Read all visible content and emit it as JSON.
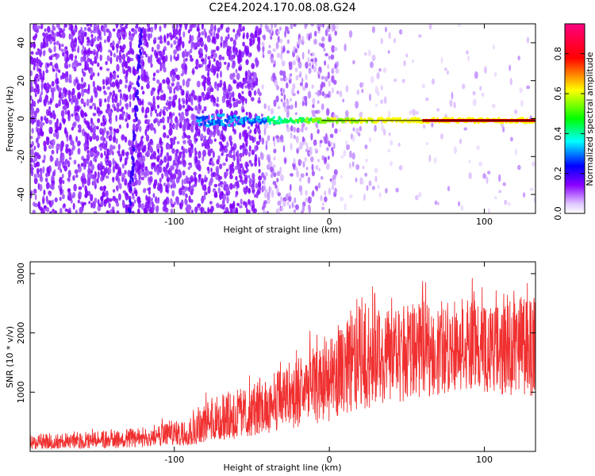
{
  "title": "C2E4.2024.170.08.08.G24",
  "chart_data": [
    {
      "type": "heatmap",
      "xlabel": "Height of straight line (km)",
      "ylabel": "Frequency (Hz)",
      "xlim": [
        -193,
        133
      ],
      "ylim": [
        -50,
        50
      ],
      "xticks": [
        -100,
        0,
        100
      ],
      "yticks": [
        -40,
        -20,
        0,
        20,
        40
      ],
      "colorbar": {
        "label": "Normalized spectral amplitude",
        "range": [
          0,
          0.95
        ],
        "ticks": [
          0.0,
          0.2,
          0.4,
          0.6,
          0.8
        ],
        "colormap": [
          "#ffffff",
          "#d9b3ff",
          "#7f00ff",
          "#0000ff",
          "#00ffff",
          "#00ff00",
          "#ffff00",
          "#ff0000",
          "#ff0080"
        ]
      },
      "signal_band": {
        "description_x": [
          -85,
          133
        ],
        "center_frequency": -1,
        "start_x": -85
      }
    },
    {
      "type": "line",
      "xlabel": "Height of straight line (km)",
      "ylabel": "SNR (10 * v/v)",
      "xlim": [
        -193,
        133
      ],
      "ylim": [
        0,
        3200
      ],
      "xticks": [
        -100,
        0,
        100
      ],
      "yticks": [
        1000,
        2000,
        3000
      ],
      "series": [
        {
          "color": "#f03030",
          "envelope_x": [
            -193,
            -160,
            -130,
            -110,
            -90,
            -80,
            -70,
            -60,
            -50,
            -40,
            -30,
            -20,
            -10,
            0,
            10,
            20,
            30,
            40,
            50,
            60,
            70,
            80,
            90,
            100,
            110,
            120,
            133
          ],
          "envelope_low": [
            30,
            40,
            60,
            80,
            100,
            120,
            150,
            200,
            250,
            300,
            350,
            400,
            450,
            500,
            600,
            700,
            750,
            800,
            850,
            900,
            950,
            1000,
            1050,
            1000,
            950,
            900,
            900
          ],
          "envelope_high": [
            350,
            380,
            450,
            550,
            700,
            1000,
            1200,
            1250,
            1300,
            1500,
            1700,
            1900,
            2100,
            2200,
            2500,
            2900,
            2800,
            2700,
            2800,
            2900,
            2700,
            2700,
            3000,
            2800,
            2700,
            3000,
            2900
          ],
          "trend": [
            150,
            170,
            200,
            250,
            330,
            450,
            550,
            600,
            650,
            750,
            850,
            950,
            1050,
            1150,
            1350,
            1550,
            1600,
            1650,
            1700,
            1750,
            1750,
            1780,
            1800,
            1800,
            1780,
            1780,
            1800
          ]
        }
      ]
    }
  ]
}
